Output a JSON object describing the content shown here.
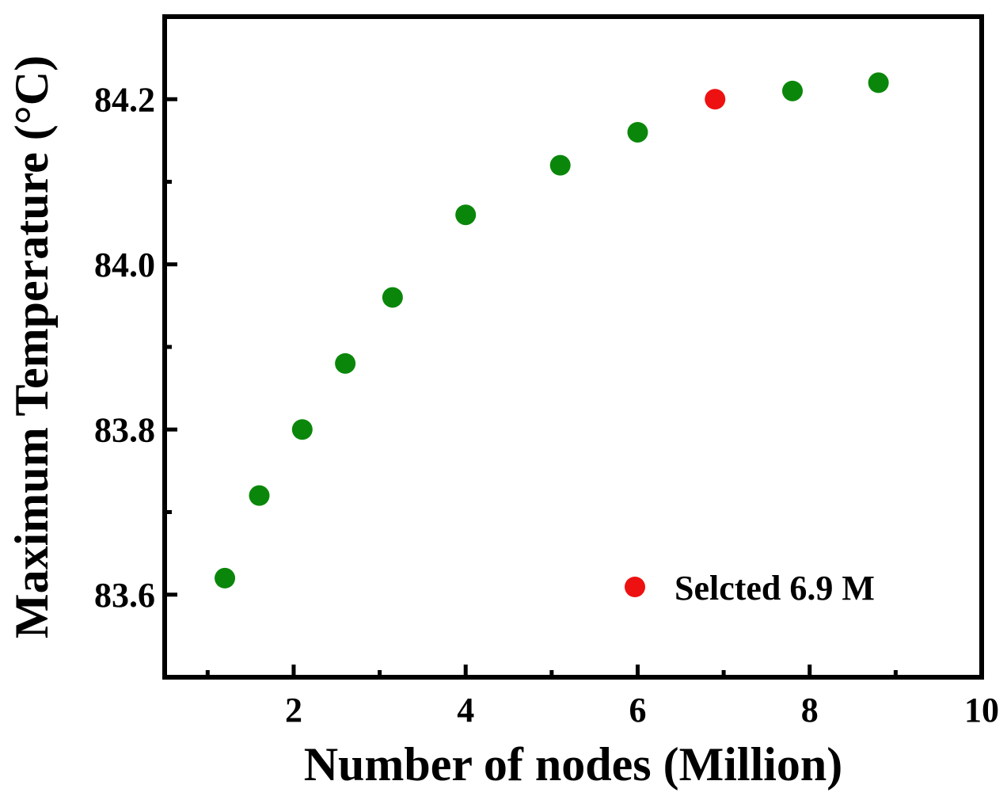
{
  "chart_data": {
    "type": "scatter",
    "xlabel": "Number of nodes (Million)",
    "ylabel": "Maximum Temperature (°C)",
    "xlim": [
      0.5,
      10
    ],
    "ylim": [
      83.5,
      84.3
    ],
    "x_ticks": [
      2,
      4,
      6,
      8,
      10
    ],
    "x_tick_labels": [
      "2",
      "4",
      "6",
      "8",
      "10"
    ],
    "x_minor_ticks": [
      1,
      3,
      5,
      7,
      9
    ],
    "y_ticks": [
      83.6,
      83.8,
      84.0,
      84.2
    ],
    "y_tick_labels": [
      "83.6",
      "83.8",
      "84.0",
      "84.2"
    ],
    "y_minor_ticks": [
      83.7,
      83.9,
      84.1
    ],
    "grid": false,
    "legend_position": "bottom-right",
    "series": [
      {
        "color": "#0a870a",
        "points": [
          {
            "x": 1.2,
            "y": 83.62
          },
          {
            "x": 1.6,
            "y": 83.72
          },
          {
            "x": 2.1,
            "y": 83.8
          },
          {
            "x": 2.6,
            "y": 83.88
          },
          {
            "x": 3.15,
            "y": 83.96
          },
          {
            "x": 4.0,
            "y": 84.06
          },
          {
            "x": 5.1,
            "y": 84.12
          },
          {
            "x": 6.0,
            "y": 84.16
          },
          {
            "x": 7.8,
            "y": 84.21
          },
          {
            "x": 8.8,
            "y": 84.22
          }
        ]
      },
      {
        "name": "Selcted 6.9 M",
        "color": "#ee1111",
        "points": [
          {
            "x": 6.9,
            "y": 84.2
          }
        ]
      }
    ]
  }
}
